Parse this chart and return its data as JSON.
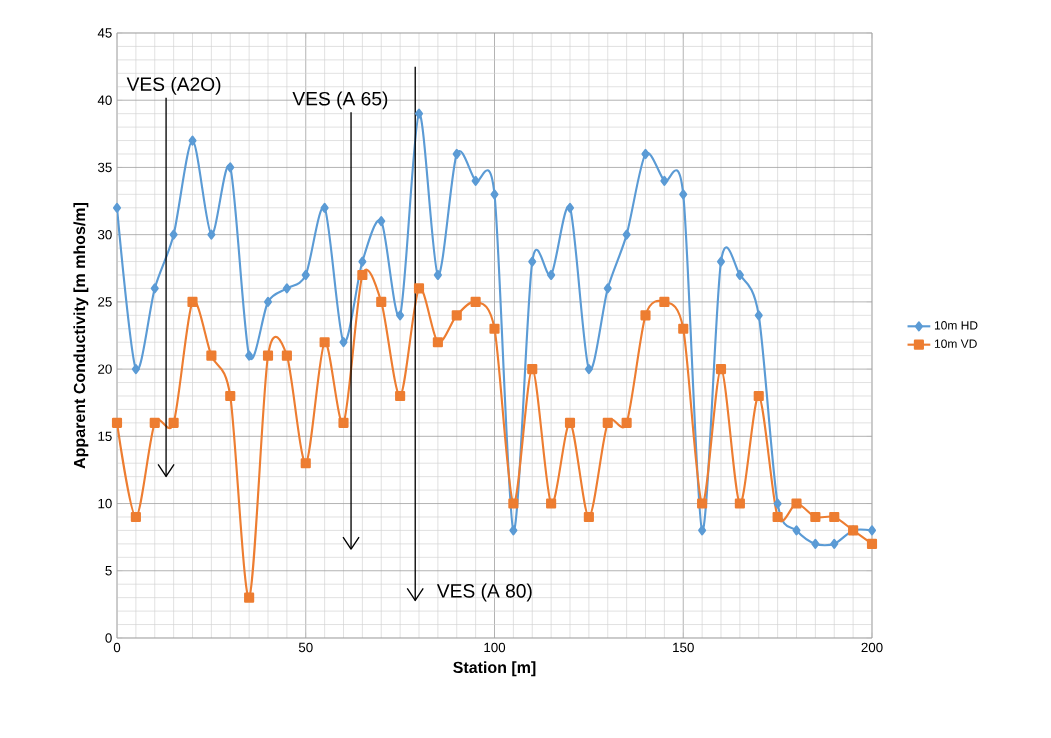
{
  "chart_data": {
    "type": "line",
    "xlabel": "Station [m]",
    "ylabel": "Apparent Conductivity [m mhos/m]",
    "x": [
      0,
      5,
      10,
      15,
      20,
      25,
      30,
      35,
      40,
      45,
      50,
      55,
      60,
      65,
      70,
      75,
      80,
      85,
      90,
      95,
      100,
      105,
      110,
      115,
      120,
      125,
      130,
      135,
      140,
      145,
      150,
      155,
      160,
      165,
      170,
      175,
      180,
      185,
      190,
      195,
      200
    ],
    "series": [
      {
        "name": "10m HD",
        "color": "#5b9bd5",
        "marker": "diamond",
        "values": [
          32,
          20,
          26,
          30,
          37,
          30,
          35,
          21,
          25,
          26,
          27,
          32,
          22,
          28,
          31,
          24,
          39,
          27,
          36,
          34,
          33,
          8,
          28,
          27,
          32,
          20,
          26,
          30,
          36,
          34,
          33,
          8,
          28,
          27,
          24,
          10,
          8,
          7,
          7,
          8,
          8
        ]
      },
      {
        "name": "10m VD",
        "color": "#ed7d31",
        "marker": "square",
        "values": [
          16,
          9,
          16,
          16,
          25,
          21,
          18,
          3,
          21,
          21,
          13,
          22,
          16,
          27,
          25,
          18,
          26,
          22,
          24,
          25,
          23,
          10,
          20,
          10,
          16,
          9,
          16,
          16,
          24,
          25,
          23,
          10,
          20,
          10,
          18,
          9,
          10,
          9,
          9,
          8,
          7
        ]
      }
    ],
    "xlim": [
      0,
      200
    ],
    "ylim": [
      0,
      45
    ],
    "xticks": [
      0,
      50,
      100,
      150,
      200
    ],
    "yticks": [
      0,
      5,
      10,
      15,
      20,
      25,
      30,
      35,
      40,
      45
    ],
    "grid": true,
    "legend": "right",
    "ref_lines": [
      {
        "axis": "x",
        "value": 13,
        "label": "VES (A2O)",
        "color": "#000000"
      },
      {
        "axis": "x",
        "value": 62,
        "label": "VES (A 65)",
        "color": "#000000"
      },
      {
        "axis": "x",
        "value": 79,
        "label": "VES (A 80)",
        "color": "#000000"
      }
    ]
  }
}
